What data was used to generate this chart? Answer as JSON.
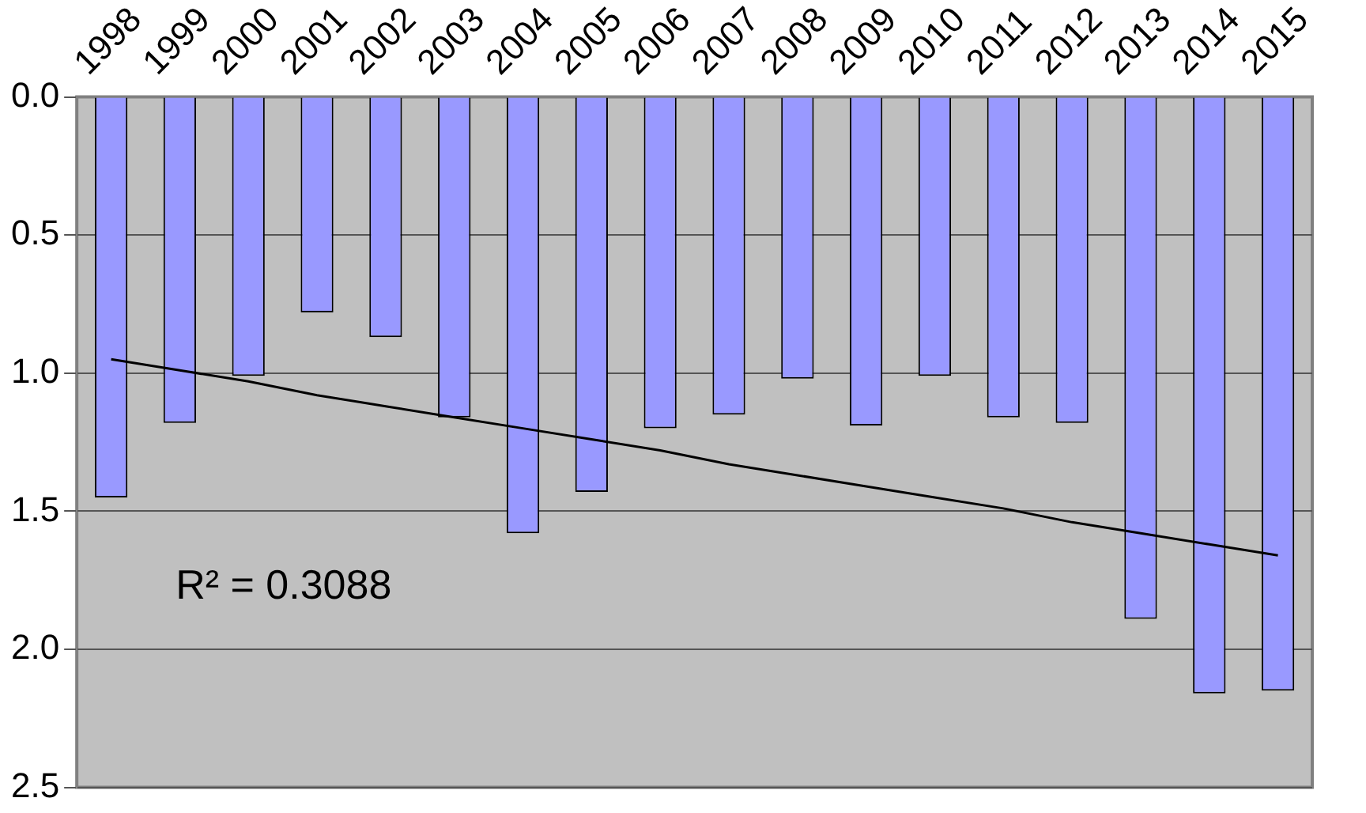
{
  "chart_data": {
    "type": "bar",
    "categories": [
      "1998",
      "1999",
      "2000",
      "2001",
      "2002",
      "2003",
      "2004",
      "2005",
      "2006",
      "2007",
      "2008",
      "2009",
      "2010",
      "2011",
      "2012",
      "2013",
      "2014",
      "2015"
    ],
    "series": [
      {
        "color": "#9999ff",
        "values": [
          1.45,
          1.18,
          1.01,
          0.78,
          0.87,
          1.16,
          1.58,
          1.43,
          1.2,
          1.15,
          1.02,
          1.19,
          1.01,
          1.16,
          1.18,
          1.89,
          2.16,
          2.15
        ]
      },
      {
        "type": "line",
        "color": "#000000",
        "values": [
          0.95,
          0.99,
          1.03,
          1.08,
          1.12,
          1.16,
          1.2,
          1.24,
          1.28,
          1.33,
          1.37,
          1.41,
          1.45,
          1.49,
          1.54,
          1.58,
          1.62,
          1.66
        ]
      }
    ],
    "ylim": [
      2.5,
      0
    ],
    "yticks": [
      {
        "value": 0,
        "label": "0.0"
      },
      {
        "value": 0.5,
        "label": "0.5"
      },
      {
        "value": 1,
        "label": "1.0"
      },
      {
        "value": 1.5,
        "label": "1.5"
      },
      {
        "value": 2,
        "label": "2.0"
      },
      {
        "value": 2.5,
        "label": "2.5"
      }
    ],
    "grid": "y",
    "legend": false,
    "marker": "none",
    "line_style": "solid",
    "annotations": [
      "R² = 0.3088"
    ]
  }
}
